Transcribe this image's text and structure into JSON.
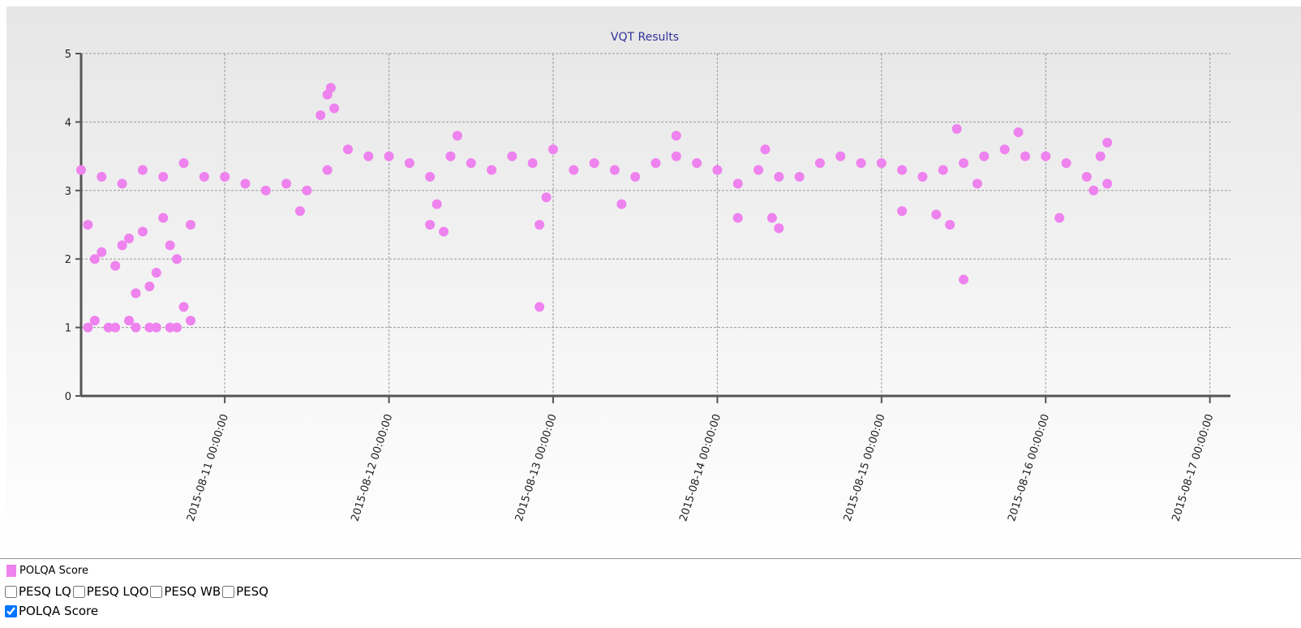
{
  "chart_data": {
    "type": "scatter",
    "title": "VQT Results",
    "series": [
      {
        "name": "POLQA Score",
        "color": "#ee82ee",
        "x": [
          "2015-08-10 03:00:00",
          "2015-08-10 06:00:00",
          "2015-08-10 09:00:00",
          "2015-08-10 12:00:00",
          "2015-08-10 15:00:00",
          "2015-08-10 18:00:00",
          "2015-08-10 21:00:00",
          "2015-08-11 00:00:00",
          "2015-08-11 03:00:00",
          "2015-08-11 06:00:00",
          "2015-08-11 09:00:00",
          "2015-08-11 12:00:00",
          "2015-08-11 15:00:00",
          "2015-08-11 18:00:00",
          "2015-08-11 21:00:00",
          "2015-08-12 00:00:00",
          "2015-08-12 03:00:00",
          "2015-08-12 06:00:00",
          "2015-08-12 09:00:00",
          "2015-08-12 12:00:00",
          "2015-08-12 15:00:00",
          "2015-08-12 18:00:00",
          "2015-08-12 21:00:00",
          "2015-08-13 00:00:00",
          "2015-08-13 03:00:00",
          "2015-08-13 06:00:00",
          "2015-08-13 09:00:00",
          "2015-08-13 12:00:00",
          "2015-08-13 15:00:00",
          "2015-08-13 18:00:00",
          "2015-08-13 21:00:00",
          "2015-08-14 00:00:00",
          "2015-08-14 03:00:00",
          "2015-08-14 06:00:00",
          "2015-08-14 09:00:00",
          "2015-08-14 12:00:00",
          "2015-08-14 15:00:00",
          "2015-08-14 18:00:00",
          "2015-08-14 21:00:00",
          "2015-08-15 00:00:00",
          "2015-08-15 03:00:00",
          "2015-08-15 06:00:00",
          "2015-08-15 09:00:00",
          "2015-08-15 12:00:00",
          "2015-08-15 15:00:00",
          "2015-08-15 18:00:00",
          "2015-08-15 21:00:00",
          "2015-08-16 00:00:00",
          "2015-08-16 03:00:00",
          "2015-08-16 06:00:00",
          "2015-08-16 09:00:00",
          "2015-08-10 04:00:00",
          "2015-08-10 05:00:00",
          "2015-08-10 06:00:00",
          "2015-08-10 07:00:00",
          "2015-08-10 08:00:00",
          "2015-08-10 09:00:00",
          "2015-08-10 10:00:00",
          "2015-08-10 11:00:00",
          "2015-08-10 12:00:00",
          "2015-08-10 13:00:00",
          "2015-08-10 14:00:00",
          "2015-08-10 15:00:00",
          "2015-08-10 16:00:00",
          "2015-08-10 17:00:00",
          "2015-08-10 18:00:00",
          "2015-08-10 19:00:00",
          "2015-08-10 19:00:00",
          "2015-08-10 04:00:00",
          "2015-08-10 08:00:00",
          "2015-08-10 11:00:00",
          "2015-08-10 14:00:00",
          "2015-08-10 17:00:00",
          "2015-08-10 05:00:00",
          "2015-08-10 10:00:00",
          "2015-08-10 13:00:00",
          "2015-08-10 16:00:00",
          "2015-08-11 14:00:00",
          "2015-08-11 15:00:00",
          "2015-08-11 15:30:00",
          "2015-08-11 16:00:00",
          "2015-08-11 11:00:00",
          "2015-08-12 06:00:00",
          "2015-08-12 07:00:00",
          "2015-08-12 08:00:00",
          "2015-08-12 10:00:00",
          "2015-08-12 22:00:00",
          "2015-08-12 22:00:00",
          "2015-08-12 23:00:00",
          "2015-08-13 10:00:00",
          "2015-08-13 18:00:00",
          "2015-08-14 03:00:00",
          "2015-08-14 08:00:00",
          "2015-08-14 09:00:00",
          "2015-08-14 07:00:00",
          "2015-08-15 03:00:00",
          "2015-08-15 08:00:00",
          "2015-08-15 10:00:00",
          "2015-08-15 12:00:00",
          "2015-08-15 11:00:00",
          "2015-08-15 14:00:00",
          "2015-08-15 20:00:00",
          "2015-08-16 02:00:00",
          "2015-08-16 07:00:00",
          "2015-08-16 09:00:00",
          "2015-08-16 08:00:00"
        ],
        "values": [
          3.3,
          3.2,
          3.1,
          3.3,
          3.2,
          3.4,
          3.2,
          3.2,
          3.1,
          3.0,
          3.1,
          3.0,
          3.3,
          3.6,
          3.5,
          3.5,
          3.4,
          3.2,
          3.5,
          3.4,
          3.3,
          3.5,
          3.4,
          3.6,
          3.3,
          3.4,
          3.3,
          3.2,
          3.4,
          3.5,
          3.4,
          3.3,
          3.1,
          3.3,
          3.2,
          3.2,
          3.4,
          3.5,
          3.4,
          3.4,
          3.3,
          3.2,
          3.3,
          3.4,
          3.5,
          3.6,
          3.5,
          3.5,
          3.4,
          3.2,
          3.1,
          2.5,
          1.1,
          2.1,
          1.0,
          1.9,
          2.2,
          1.1,
          1.5,
          2.4,
          1.0,
          1.8,
          2.6,
          1.0,
          2.0,
          1.3,
          1.1,
          2.5,
          1.0,
          1.0,
          1.0,
          1.0,
          1.0,
          2.0,
          2.3,
          1.6,
          2.2,
          4.1,
          4.4,
          4.5,
          4.2,
          2.7,
          2.5,
          2.8,
          2.4,
          3.8,
          1.3,
          2.5,
          2.9,
          2.8,
          3.8,
          2.6,
          2.6,
          2.45,
          3.6,
          2.7,
          2.65,
          2.5,
          1.7,
          3.9,
          3.1,
          3.85,
          2.6,
          3.0,
          3.7,
          3.5
        ]
      }
    ],
    "xlim": [
      "2015-08-10 03:00:00",
      "2015-08-17 03:00:00"
    ],
    "xticks": [
      "2015-08-11 00:00:00",
      "2015-08-12 00:00:00",
      "2015-08-13 00:00:00",
      "2015-08-14 00:00:00",
      "2015-08-15 00:00:00",
      "2015-08-16 00:00:00",
      "2015-08-17 00:00:00"
    ],
    "ylim": [
      0,
      5
    ],
    "yticks": [
      0,
      1,
      2,
      3,
      4,
      5
    ],
    "grid": true
  },
  "checkbox_rows": [
    [
      {
        "label": "PESQ LQ",
        "checked": false
      },
      {
        "label": "PESQ LQO",
        "checked": false
      },
      {
        "label": "PESQ WB",
        "checked": false
      },
      {
        "label": "PESQ",
        "checked": false
      }
    ],
    [
      {
        "label": "POLQA Score",
        "checked": true
      }
    ]
  ]
}
